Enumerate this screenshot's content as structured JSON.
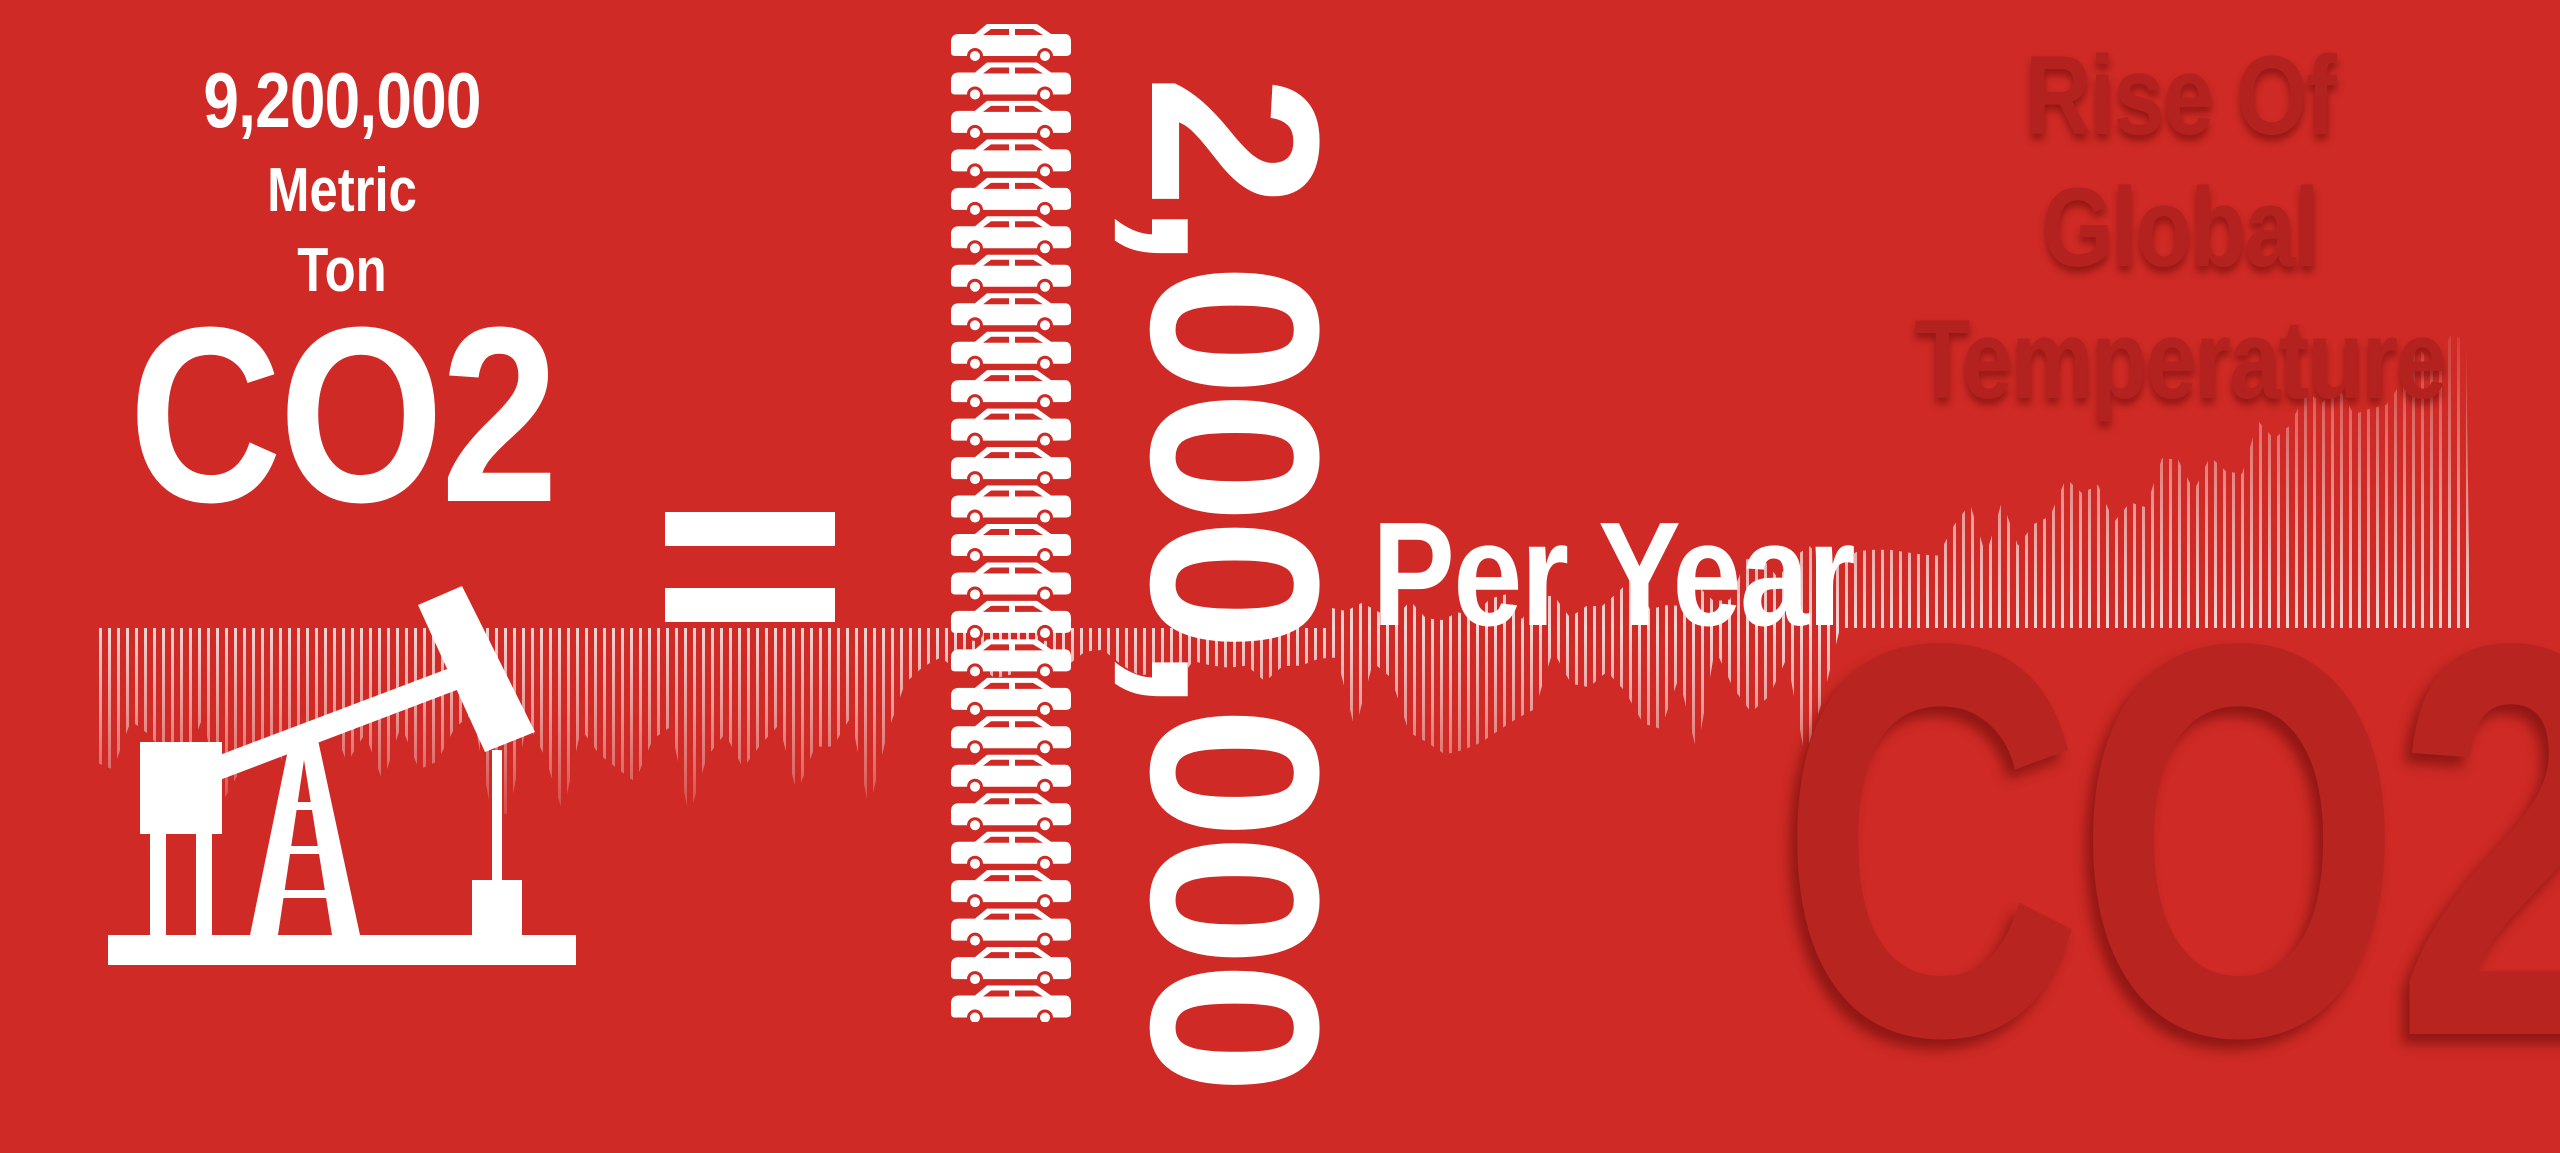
{
  "colors": {
    "background": "#cf2a25",
    "foreground": "#ffffff",
    "title_shade": "#b3221e",
    "bg_text_shade": "#b82420"
  },
  "emission": {
    "amount": "9,200,000",
    "unit_line1": "Metric",
    "unit_line2": "Ton",
    "gas": "CO2"
  },
  "equals_symbol": "=",
  "cars": {
    "icon": "car-icon",
    "count_shown": 26
  },
  "equivalent": {
    "number": "2,000,000",
    "period": "Per Year"
  },
  "title": {
    "line1": "Rise Of Global",
    "line2": "Temperature"
  },
  "background_text": "CO2",
  "icons": {
    "pump": "oil-pump-jack-icon",
    "chart": "temperature-waveform-graphic"
  }
}
